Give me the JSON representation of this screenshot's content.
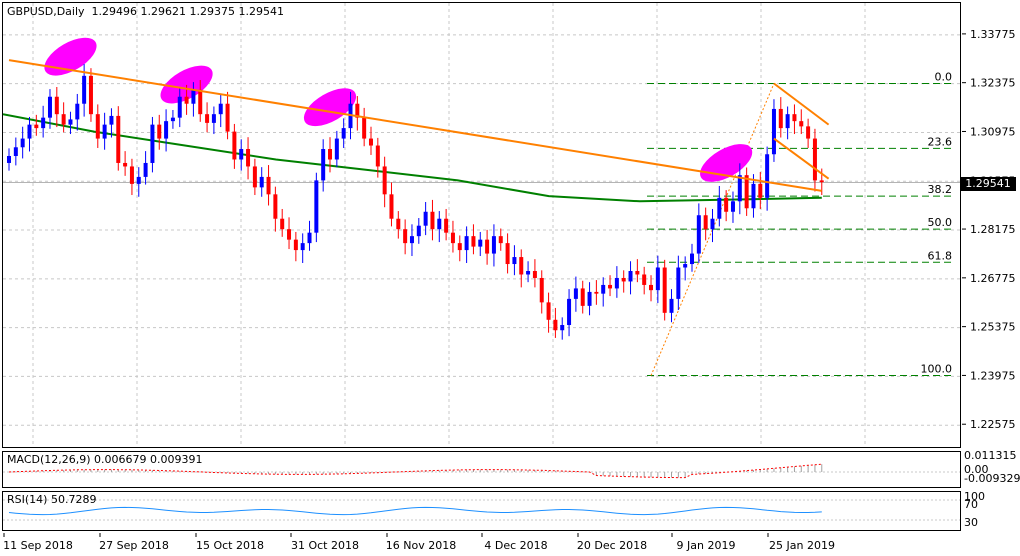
{
  "chart_data": {
    "type": "candlestick",
    "title": "GBPUSD,Daily",
    "ohlc": [
      "1.29496",
      "1.29621",
      "1.29375",
      "1.29541"
    ],
    "last_price": "1.29541",
    "y_ticks": [
      "1.33775",
      "1.32375",
      "1.30975",
      "1.29575",
      "1.28175",
      "1.26775",
      "1.25375",
      "1.23975",
      "1.22575"
    ],
    "ylim": [
      1.2195,
      1.3469
    ],
    "x_ticks": [
      "11 Sep 2018",
      "27 Sep 2018",
      "15 Oct 2018",
      "31 Oct 2018",
      "16 Nov 2018",
      "4 Dec 2018",
      "20 Dec 2018",
      "9 Jan 2019",
      "25 Jan 2019"
    ],
    "fibonacci": [
      {
        "label": "0.0",
        "price": 1.3238
      },
      {
        "label": "23.6",
        "price": 1.3052
      },
      {
        "label": "38.2",
        "price": 1.2915
      },
      {
        "label": "50.0",
        "price": 1.282
      },
      {
        "label": "61.8",
        "price": 1.2725
      },
      {
        "label": "100.0",
        "price": 1.24
      }
    ],
    "colors": {
      "up": "#0000ff",
      "down": "#ff0000",
      "ma": "#008000",
      "trendline": "#ff8000",
      "highlight": "#ff00ff",
      "fib": "#008000"
    },
    "closes": [
      1.303,
      1.3055,
      1.308,
      1.312,
      1.311,
      1.314,
      1.32,
      1.315,
      1.312,
      1.3135,
      1.318,
      1.326,
      1.315,
      1.308,
      1.312,
      1.3145,
      1.301,
      1.3,
      1.295,
      1.297,
      1.301,
      1.312,
      1.308,
      1.313,
      1.314,
      1.32,
      1.318,
      1.322,
      1.315,
      1.3125,
      1.315,
      1.318,
      1.31,
      1.302,
      1.305,
      1.3,
      1.294,
      1.297,
      1.292,
      1.285,
      1.282,
      1.279,
      1.276,
      1.278,
      1.281,
      1.296,
      1.305,
      1.302,
      1.308,
      1.311,
      1.318,
      1.314,
      1.308,
      1.306,
      1.3,
      1.292,
      1.285,
      1.282,
      1.278,
      1.28,
      1.283,
      1.287,
      1.282,
      1.285,
      1.281,
      1.278,
      1.276,
      1.28,
      1.277,
      1.279,
      1.275,
      1.28,
      1.278,
      1.272,
      1.274,
      1.269,
      1.27,
      1.268,
      1.261,
      1.256,
      1.253,
      1.2545,
      1.262,
      1.265,
      1.26,
      1.264,
      1.2635,
      1.266,
      1.265,
      1.268,
      1.267,
      1.27,
      1.269,
      1.266,
      1.2645,
      1.271,
      1.258,
      1.262,
      1.271,
      1.272,
      1.275,
      1.286,
      1.282,
      1.285,
      1.291,
      1.287,
      1.29,
      1.2975,
      1.288,
      1.295,
      1.291,
      1.3035,
      1.3165,
      1.311,
      1.315,
      1.313,
      1.3115,
      1.308,
      1.296,
      1.2955
    ],
    "ma_series": [
      1.315,
      1.31,
      1.306,
      1.302,
      1.299,
      1.296,
      1.2915,
      1.29,
      1.2905,
      1.291
    ],
    "trendlines": [
      {
        "name": "descending-resistance",
        "from": [
          0,
          1.3305
        ],
        "to": [
          119,
          1.293
        ]
      },
      {
        "name": "channel-top",
        "from": [
          112,
          1.3238
        ],
        "to": [
          120,
          1.312
        ]
      },
      {
        "name": "channel-bottom",
        "from": [
          112,
          1.308
        ],
        "to": [
          120,
          1.2965
        ]
      }
    ],
    "macd": {
      "label": "MACD(12,26,9)",
      "macd_value": "0.006679",
      "signal_value": "0.009391",
      "ticks": [
        "0.011315",
        "0.00",
        "-0.009329"
      ]
    },
    "rsi": {
      "label": "RSI(14)",
      "value": "50.7289",
      "ticks": [
        "100",
        "70",
        "30"
      ]
    }
  }
}
